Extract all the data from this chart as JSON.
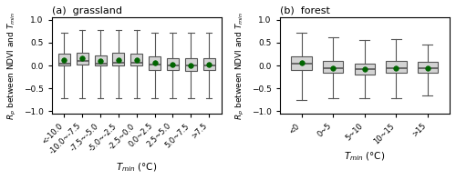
{
  "panel_a": {
    "title": "(a)  grassland",
    "xlabel": "T_min (°C)",
    "ylabel": "R_p between NDVI and T_min",
    "categories": [
      "<-10.0",
      "-10.0~-7.5",
      "-7.5~-5.0",
      "-5.0~-2.5",
      "-2.5~0.0",
      "0.0~2.5",
      "2.5~5.0",
      "5.0~7.5",
      ">7.5"
    ],
    "box_data": [
      {
        "q1": 0.0,
        "median": 0.05,
        "q3": 0.25,
        "whislo": -0.72,
        "whishi": 0.72,
        "mean": 0.12
      },
      {
        "q1": 0.02,
        "median": 0.1,
        "q3": 0.28,
        "whislo": -0.72,
        "whishi": 0.78,
        "mean": 0.15
      },
      {
        "q1": 0.0,
        "median": 0.05,
        "q3": 0.22,
        "whislo": -0.72,
        "whishi": 0.78,
        "mean": 0.09
      },
      {
        "q1": 0.0,
        "median": 0.06,
        "q3": 0.28,
        "whislo": -0.72,
        "whishi": 0.78,
        "mean": 0.12
      },
      {
        "q1": 0.0,
        "median": 0.06,
        "q3": 0.26,
        "whislo": -0.72,
        "whishi": 0.78,
        "mean": 0.12
      },
      {
        "q1": -0.1,
        "median": 0.03,
        "q3": 0.2,
        "whislo": -0.72,
        "whishi": 0.72,
        "mean": 0.06
      },
      {
        "q1": -0.1,
        "median": 0.0,
        "q3": 0.15,
        "whislo": -0.72,
        "whishi": 0.72,
        "mean": 0.02
      },
      {
        "q1": -0.12,
        "median": 0.0,
        "q3": 0.15,
        "whislo": -0.72,
        "whishi": 0.72,
        "mean": 0.01
      },
      {
        "q1": -0.1,
        "median": 0.0,
        "q3": 0.15,
        "whislo": -0.72,
        "whishi": 0.72,
        "mean": 0.02
      }
    ]
  },
  "panel_b": {
    "title": "(b)  forest",
    "xlabel": "T_min (°C)",
    "ylabel": "R_p between NDVI and T_min",
    "categories": [
      "<0",
      "0~5",
      "5~10",
      "10~15",
      ">15"
    ],
    "box_data": [
      {
        "q1": -0.1,
        "median": 0.05,
        "q3": 0.2,
        "whislo": -0.75,
        "whishi": 0.72,
        "mean": 0.06
      },
      {
        "q1": -0.15,
        "median": -0.05,
        "q3": 0.1,
        "whislo": -0.72,
        "whishi": 0.62,
        "mean": -0.05
      },
      {
        "q1": -0.2,
        "median": -0.08,
        "q3": 0.05,
        "whislo": -0.72,
        "whishi": 0.55,
        "mean": -0.08
      },
      {
        "q1": -0.15,
        "median": -0.05,
        "q3": 0.1,
        "whislo": -0.72,
        "whishi": 0.58,
        "mean": -0.05
      },
      {
        "q1": -0.15,
        "median": -0.05,
        "q3": 0.08,
        "whislo": -0.65,
        "whishi": 0.45,
        "mean": -0.05
      }
    ]
  },
  "box_facecolor": "#d3d3d3",
  "box_edgecolor": "#555555",
  "median_color": "#555555",
  "mean_color": "#006400",
  "whisker_color": "#555555",
  "cap_color": "#555555",
  "ylim": [
    -1.05,
    1.05
  ],
  "yticks": [
    -1.0,
    -0.5,
    0.0,
    0.5,
    1.0
  ],
  "background_color": "#ffffff",
  "mean_marker": "o",
  "mean_markersize": 4
}
